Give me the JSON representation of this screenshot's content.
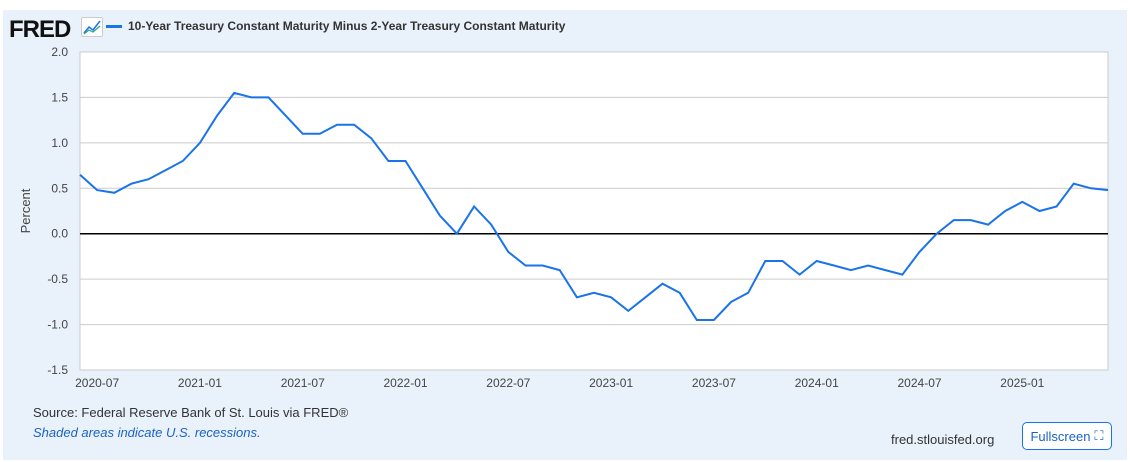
{
  "header": {
    "logo": "FRED",
    "logo_icon": "line-chart-icon"
  },
  "footer": {
    "source": "Source: Federal Reserve Bank of St. Louis via FRED®",
    "recessions": "Shaded areas indicate U.S. recessions.",
    "site": "fred.stlouisfed.org",
    "fullscreen": "Fullscreen",
    "fullscreen_icon": "expand-icon"
  },
  "chart_data": {
    "type": "line",
    "title": "",
    "xlabel": "",
    "ylabel": "Percent",
    "ylim": [
      -1.5,
      2.0
    ],
    "yticks": [
      2.0,
      1.5,
      1.0,
      0.5,
      0.0,
      -0.5,
      -1.0,
      -1.5
    ],
    "ytick_labels": [
      "2.0",
      "1.5",
      "1.0",
      "0.5",
      "0.0",
      "-0.5",
      "-1.0",
      "-1.5"
    ],
    "xlim": [
      "2020-06",
      "2025-06"
    ],
    "xticks": [
      "2020-07",
      "2021-01",
      "2021-07",
      "2022-01",
      "2022-07",
      "2023-01",
      "2023-07",
      "2024-01",
      "2024-07",
      "2025-01"
    ],
    "grid": true,
    "legend_placement": "top-left",
    "series": [
      {
        "name": "10-Year Treasury Constant Maturity Minus 2-Year Treasury Constant Maturity",
        "color": "#1a73e8",
        "x": [
          "2020-06",
          "2020-07",
          "2020-08",
          "2020-09",
          "2020-10",
          "2020-11",
          "2020-12",
          "2021-01",
          "2021-02",
          "2021-03",
          "2021-04",
          "2021-05",
          "2021-06",
          "2021-07",
          "2021-08",
          "2021-09",
          "2021-10",
          "2021-11",
          "2021-12",
          "2022-01",
          "2022-02",
          "2022-03",
          "2022-04",
          "2022-05",
          "2022-06",
          "2022-07",
          "2022-08",
          "2022-09",
          "2022-10",
          "2022-11",
          "2022-12",
          "2023-01",
          "2023-02",
          "2023-03",
          "2023-04",
          "2023-05",
          "2023-06",
          "2023-07",
          "2023-08",
          "2023-09",
          "2023-10",
          "2023-11",
          "2023-12",
          "2024-01",
          "2024-02",
          "2024-03",
          "2024-04",
          "2024-05",
          "2024-06",
          "2024-07",
          "2024-08",
          "2024-09",
          "2024-10",
          "2024-11",
          "2024-12",
          "2025-01",
          "2025-02",
          "2025-03",
          "2025-04",
          "2025-05",
          "2025-06"
        ],
        "values": [
          0.65,
          0.48,
          0.45,
          0.55,
          0.6,
          0.7,
          0.8,
          1.0,
          1.3,
          1.55,
          1.5,
          1.5,
          1.3,
          1.1,
          1.1,
          1.2,
          1.2,
          1.05,
          0.8,
          0.8,
          0.5,
          0.2,
          0.0,
          0.3,
          0.1,
          -0.2,
          -0.35,
          -0.35,
          -0.4,
          -0.7,
          -0.65,
          -0.7,
          -0.85,
          -0.7,
          -0.55,
          -0.65,
          -0.95,
          -0.95,
          -0.75,
          -0.65,
          -0.3,
          -0.3,
          -0.45,
          -0.3,
          -0.35,
          -0.4,
          -0.35,
          -0.4,
          -0.45,
          -0.2,
          0.0,
          0.15,
          0.15,
          0.1,
          0.25,
          0.35,
          0.25,
          0.3,
          0.55,
          0.5,
          0.48
        ]
      }
    ]
  }
}
